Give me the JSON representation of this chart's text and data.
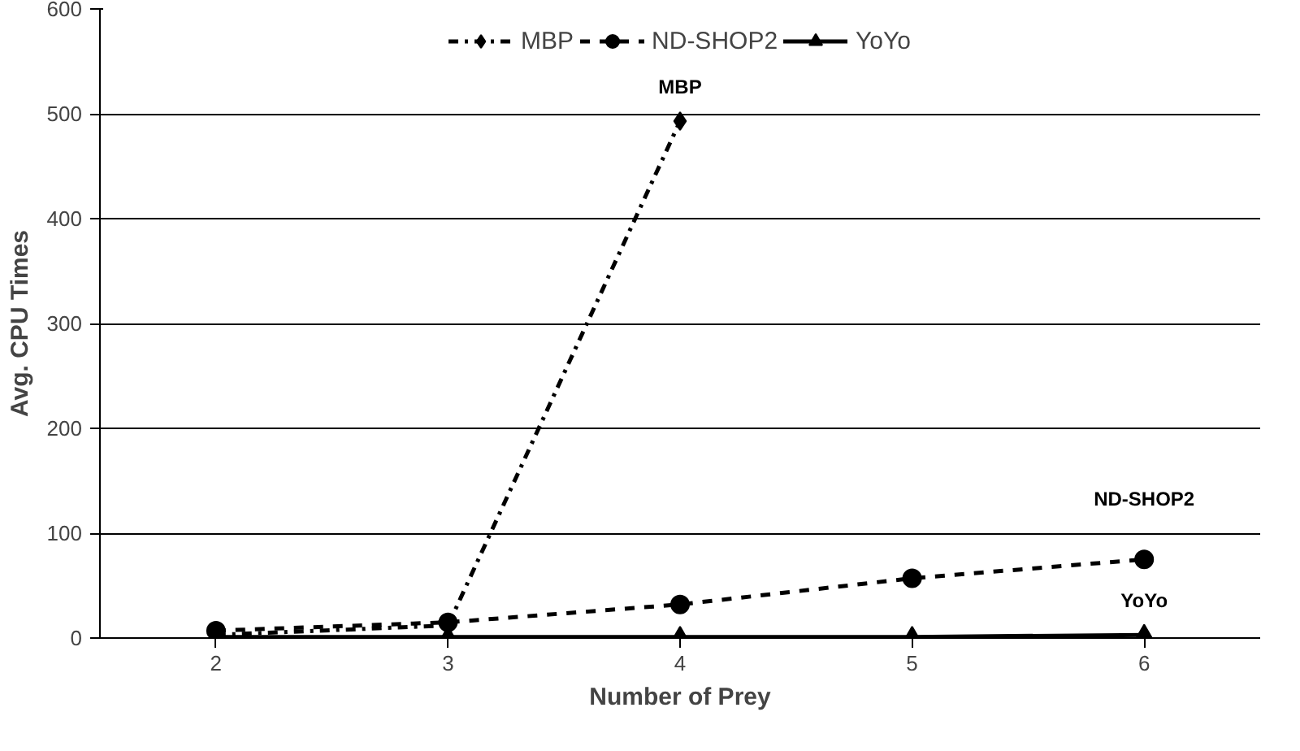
{
  "chart_data": {
    "type": "line",
    "xlabel": "Number of Prey",
    "ylabel": "Avg. CPU Times",
    "x": [
      2,
      3,
      4,
      5,
      6
    ],
    "xlim": [
      1.5,
      6.5
    ],
    "xticks": [
      2,
      3,
      4,
      5,
      6
    ],
    "ylim": [
      0,
      600
    ],
    "yticks": [
      0,
      100,
      200,
      300,
      400,
      500,
      600
    ],
    "grid": "y",
    "legend": "top",
    "series": [
      {
        "name": "MBP",
        "color": "#000000",
        "values": [
          3,
          12,
          493,
          null,
          null
        ],
        "marker": "diamond",
        "line_style": "dashdot"
      },
      {
        "name": "ND-SHOP2",
        "color": "#000000",
        "values": [
          7,
          15,
          32,
          57,
          75
        ],
        "marker": "circle",
        "line_style": "dashed"
      },
      {
        "name": "YoYo",
        "color": "#000000",
        "values": [
          1,
          1,
          1,
          1,
          3
        ],
        "marker": "triangle",
        "line_style": "solid"
      }
    ]
  }
}
